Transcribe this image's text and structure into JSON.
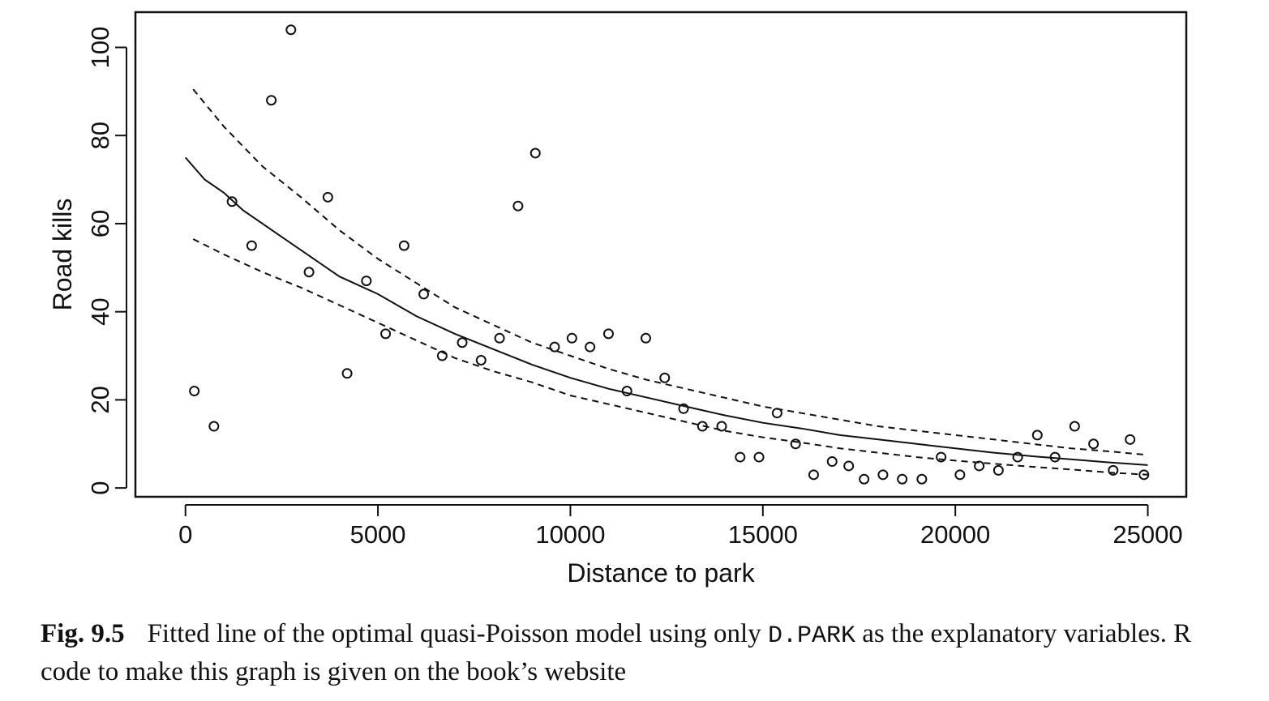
{
  "chart_data": {
    "type": "scatter",
    "xlabel": "Distance to park",
    "ylabel": "Road kills",
    "xlim": [
      -1300,
      26000
    ],
    "ylim": [
      -2,
      108
    ],
    "xticks": [
      0,
      5000,
      10000,
      15000,
      20000,
      25000
    ],
    "xtick_labels": [
      "0",
      "5000",
      "10000",
      "15000",
      "20000",
      "25000"
    ],
    "yticks": [
      0,
      20,
      40,
      60,
      80,
      100
    ],
    "ytick_labels": [
      "0",
      "20",
      "40",
      "60",
      "80",
      "100"
    ],
    "grid": false,
    "points": [
      {
        "x": 230,
        "y": 22
      },
      {
        "x": 740,
        "y": 14
      },
      {
        "x": 1210,
        "y": 65
      },
      {
        "x": 1720,
        "y": 55
      },
      {
        "x": 2230,
        "y": 88
      },
      {
        "x": 2740,
        "y": 104
      },
      {
        "x": 3210,
        "y": 49
      },
      {
        "x": 3700,
        "y": 66
      },
      {
        "x": 4200,
        "y": 26
      },
      {
        "x": 4700,
        "y": 47
      },
      {
        "x": 5200,
        "y": 35
      },
      {
        "x": 5680,
        "y": 55
      },
      {
        "x": 6190,
        "y": 44
      },
      {
        "x": 6670,
        "y": 30
      },
      {
        "x": 7190,
        "y": 33
      },
      {
        "x": 7680,
        "y": 29
      },
      {
        "x": 8160,
        "y": 34
      },
      {
        "x": 8640,
        "y": 64
      },
      {
        "x": 9090,
        "y": 76
      },
      {
        "x": 9590,
        "y": 32
      },
      {
        "x": 10040,
        "y": 34
      },
      {
        "x": 10510,
        "y": 32
      },
      {
        "x": 10990,
        "y": 35
      },
      {
        "x": 11470,
        "y": 22
      },
      {
        "x": 11960,
        "y": 34
      },
      {
        "x": 12450,
        "y": 25
      },
      {
        "x": 12940,
        "y": 18
      },
      {
        "x": 13430,
        "y": 14
      },
      {
        "x": 13930,
        "y": 14
      },
      {
        "x": 14410,
        "y": 7
      },
      {
        "x": 14900,
        "y": 7
      },
      {
        "x": 15370,
        "y": 17
      },
      {
        "x": 15850,
        "y": 10
      },
      {
        "x": 16320,
        "y": 3
      },
      {
        "x": 16800,
        "y": 6
      },
      {
        "x": 17230,
        "y": 5
      },
      {
        "x": 17630,
        "y": 2
      },
      {
        "x": 18120,
        "y": 3
      },
      {
        "x": 18620,
        "y": 2
      },
      {
        "x": 19130,
        "y": 2
      },
      {
        "x": 19630,
        "y": 7
      },
      {
        "x": 20120,
        "y": 3
      },
      {
        "x": 20620,
        "y": 5
      },
      {
        "x": 21120,
        "y": 4
      },
      {
        "x": 21620,
        "y": 7
      },
      {
        "x": 22130,
        "y": 12
      },
      {
        "x": 22590,
        "y": 7
      },
      {
        "x": 23100,
        "y": 14
      },
      {
        "x": 23590,
        "y": 10
      },
      {
        "x": 24100,
        "y": 4
      },
      {
        "x": 24540,
        "y": 11
      },
      {
        "x": 24900,
        "y": 3
      }
    ],
    "lines": [
      {
        "style": "solid",
        "x": [
          0,
          500,
          1000,
          1500,
          2000,
          2500,
          3000,
          3500,
          4000,
          5000,
          6000,
          7000,
          8000,
          9000,
          10000,
          11000,
          12000,
          13000,
          14000,
          15000,
          16000,
          17000,
          18000,
          19000,
          20000,
          21000,
          22000,
          23000,
          24000,
          25000
        ],
        "y": [
          75,
          70,
          67,
          63,
          60,
          57,
          54,
          51,
          48,
          44,
          39,
          35,
          31.5,
          28,
          25,
          22.5,
          20.5,
          18.5,
          16.5,
          14.8,
          13.5,
          12,
          11,
          10,
          9,
          8,
          7.2,
          6.5,
          5.8,
          5.2
        ]
      },
      {
        "style": "dashed",
        "x": [
          200,
          1000,
          2000,
          3000,
          4000,
          5000,
          6000,
          7000,
          8000,
          9000,
          10000,
          11000,
          12000,
          13000,
          14000,
          15000,
          16000,
          17000,
          18000,
          19000,
          20000,
          21000,
          22000,
          23000,
          24000,
          25000
        ],
        "y": [
          90.5,
          82,
          73,
          66,
          58.5,
          52,
          46.5,
          41,
          37,
          33,
          30,
          27,
          24.5,
          22.5,
          20.5,
          18.5,
          17,
          15.5,
          14,
          13,
          12,
          11,
          10,
          9,
          8.3,
          7.5
        ]
      },
      {
        "style": "dashed",
        "x": [
          200,
          1000,
          2000,
          3000,
          4000,
          5000,
          6000,
          7000,
          8000,
          9000,
          10000,
          11000,
          12000,
          13000,
          14000,
          15000,
          16000,
          17000,
          18000,
          19000,
          20000,
          21000,
          22000,
          23000,
          24000,
          25000
        ],
        "y": [
          56.5,
          53,
          49,
          45.5,
          41.5,
          37.5,
          33.5,
          29.5,
          26.5,
          24,
          21,
          19,
          17,
          15,
          13,
          11.5,
          10.3,
          9,
          8,
          7,
          6.2,
          5.5,
          4.8,
          4.2,
          3.5,
          3
        ]
      }
    ]
  },
  "caption": {
    "fig_label": "Fig. 9.5",
    "text_before": "Fitted line of the optimal quasi-Poisson model using only ",
    "code": "D.PARK",
    "text_after": " as the explanatory variables. R code to make this graph is given on the book’s website"
  }
}
